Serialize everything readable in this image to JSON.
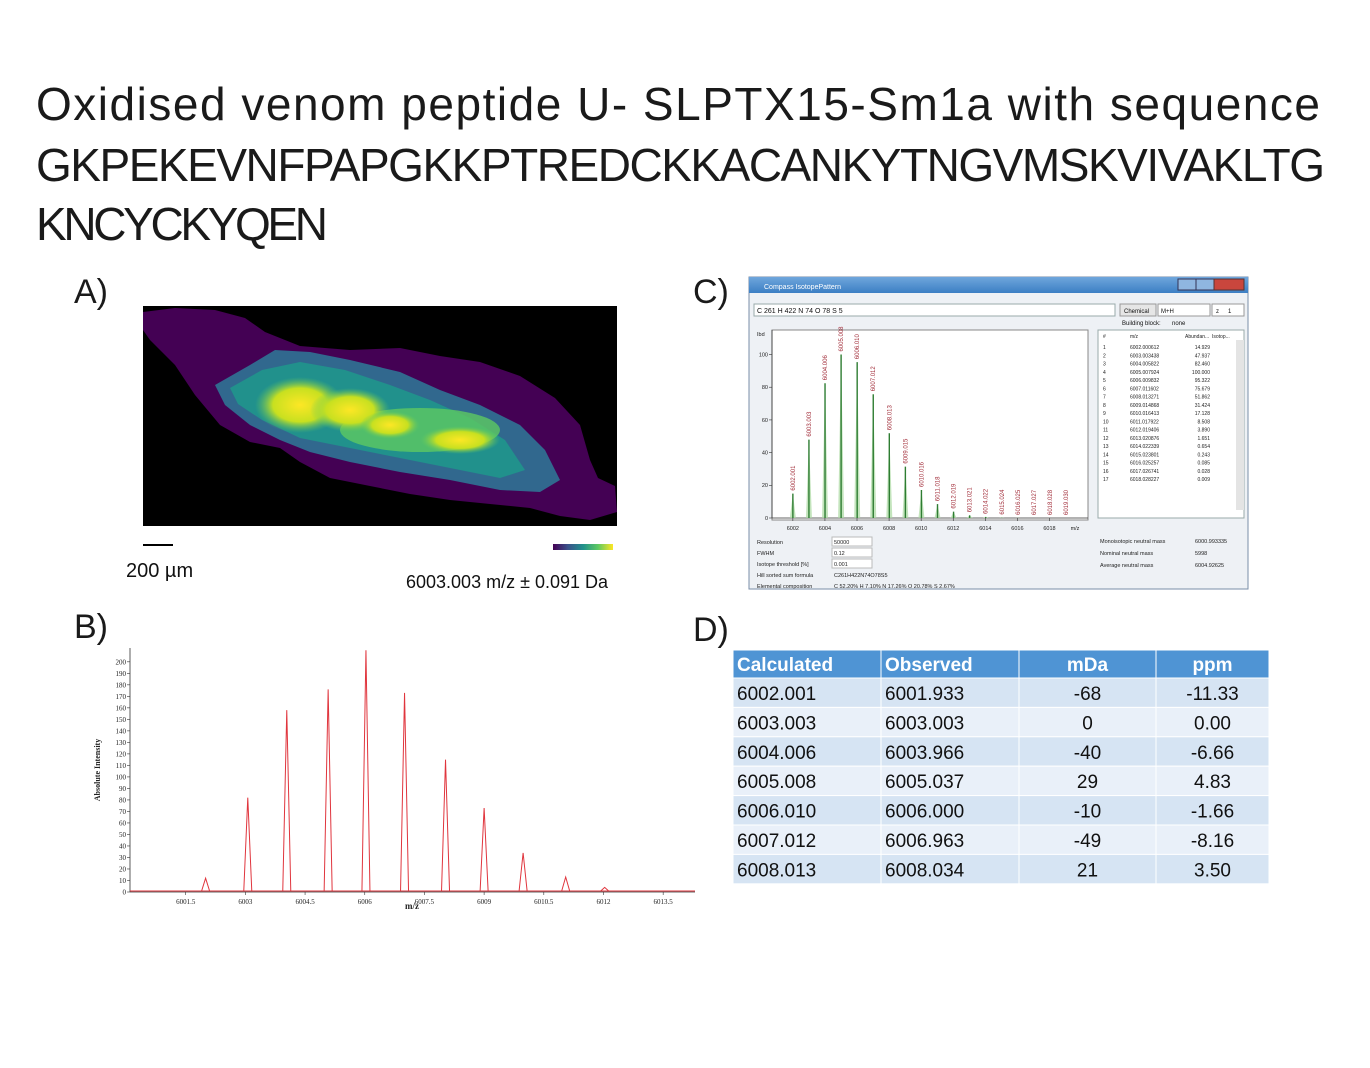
{
  "title_lines": [
    "Oxidised venom peptide U- SLPTX15-Sm1a with sequence",
    "GKPEKEVNFPAPGKKPTREDCKKACANKYTNGVMSKVIVAKLTG",
    "KNCYCKYQEN"
  ],
  "panel_labels": [
    "A)",
    "B)",
    "C)",
    "D)"
  ],
  "panel_a": {
    "scale_bar": "200 µm",
    "caption": "6003.003 m/z ± 0.091 Da"
  },
  "chart_data": [
    {
      "type": "spectrum",
      "x_label": "m/z",
      "y_label": "Absolute Intensity",
      "color": "#e0353d",
      "x": [
        6002.0,
        6003.06,
        6004.04,
        6005.08,
        6006.03,
        6007.0,
        6008.03,
        6009.0,
        6009.98,
        6011.05,
        6012.03
      ],
      "values": [
        12,
        82,
        158,
        176,
        210,
        173,
        115,
        73,
        34,
        13,
        4
      ],
      "xlim": [
        6000.1,
        6014.3
      ],
      "ylim": [
        0,
        212
      ],
      "xticks": [
        6001.5,
        6003,
        6004.5,
        6006,
        6007.5,
        6009,
        6010.5,
        6012,
        6013.5
      ],
      "yticks": [
        0,
        10,
        20,
        30,
        40,
        50,
        60,
        70,
        80,
        90,
        100,
        110,
        120,
        130,
        140,
        150,
        160,
        170,
        180,
        190,
        200
      ]
    },
    {
      "type": "bar",
      "x_label": "m/z",
      "y_label": "Ibd",
      "color": "#2e7d32",
      "label_color": "#a3303c",
      "x": [
        6002.001,
        6003.003,
        6004.006,
        6005.008,
        {
          "value": 6006.01,
          "label": "6006.010"
        },
        6007.012,
        6008.013,
        6009.015,
        6010.016,
        6011.018,
        6012.019,
        6013.021,
        6014.022,
        6015.024,
        6016.025,
        6017.027,
        6018.028,
        {
          "value": 6019.03,
          "label": "6019.030"
        }
      ],
      "values": [
        14.929,
        47.937,
        82.46,
        100,
        95.322,
        75.679,
        51.862,
        31.424,
        17.128,
        8.508,
        3.89,
        1.651,
        0.654,
        0.243,
        0.085,
        0.028,
        0.009,
        0.003
      ],
      "xlim": [
        6000.7,
        6020.4
      ],
      "ylim": [
        0,
        115
      ],
      "xticks": [
        6002,
        6004,
        6006,
        6008,
        6010,
        6012,
        6014,
        6016,
        6018
      ],
      "yticks": [
        0,
        20,
        40,
        60,
        80,
        100
      ]
    }
  ],
  "isotope_window": {
    "title": "Compass IsotopePattern",
    "formula": "C 261 H 422 N 74 O 78 S 5",
    "chemical": "Chemical",
    "adduct": "M+H",
    "charge_label": "z",
    "charge": "1",
    "building_block": "Building block:",
    "building_value": "none",
    "table_header": [
      "#",
      "m/z",
      "Abundan...",
      "Isotop..."
    ],
    "table_rows": [
      [
        "1",
        "6002.000612",
        "14.929"
      ],
      [
        "2",
        "6003.003438",
        "47.937"
      ],
      [
        "3",
        "6004.005822",
        "82.460"
      ],
      [
        "4",
        "6005.007924",
        "100.000"
      ],
      [
        "5",
        "6006.009832",
        "95.322"
      ],
      [
        "6",
        "6007.011602",
        "75.679"
      ],
      [
        "7",
        "6008.013271",
        "51.862"
      ],
      [
        "8",
        "6009.014868",
        "31.424"
      ],
      [
        "9",
        "6010.016413",
        "17.128"
      ],
      [
        "10",
        "6011.017922",
        "8.508"
      ],
      [
        "11",
        "6012.019406",
        "3.890"
      ],
      [
        "12",
        "6013.020876",
        "1.651"
      ],
      [
        "13",
        "6014.022339",
        "0.654"
      ],
      [
        "14",
        "6015.023801",
        "0.243"
      ],
      [
        "15",
        "6016.025257",
        "0.085"
      ],
      [
        "16",
        "6017.026741",
        "0.028"
      ],
      [
        "17",
        "6018.028227",
        "0.009"
      ]
    ],
    "fields_left": [
      [
        "Resolution",
        "50000"
      ],
      [
        "FWHM",
        "0.12"
      ],
      [
        "Isotope threshold [%]",
        "0.001"
      ],
      [
        "Hill sorted sum formula",
        "C261H422N74O78S5"
      ],
      [
        "Elemental composition",
        "C 52.20% H 7.10% N 17.26% O 20.78% S 2.67%"
      ]
    ],
    "fields_right": [
      [
        "Monoisotopic neutral mass",
        "6000.993335"
      ],
      [
        "Nominal neutral mass",
        "5998"
      ],
      [
        "Average neutral mass",
        "6004.92625"
      ]
    ]
  },
  "table": {
    "header": [
      "Calculated",
      "Observed",
      "mDa",
      "ppm"
    ],
    "rows": [
      [
        "6002.001",
        "6001.933",
        "-68",
        "-11.33"
      ],
      [
        "6003.003",
        "6003.003",
        "0",
        "0.00"
      ],
      [
        "6004.006",
        "6003.966",
        "-40",
        "-6.66"
      ],
      [
        "6005.008",
        "6005.037",
        "29",
        "4.83"
      ],
      [
        "6006.010",
        "6006.000",
        "-10",
        "-1.66"
      ],
      [
        "6007.012",
        "6006.963",
        "-49",
        "-8.16"
      ],
      [
        "6008.013",
        "6008.034",
        "21",
        "3.50"
      ]
    ]
  }
}
